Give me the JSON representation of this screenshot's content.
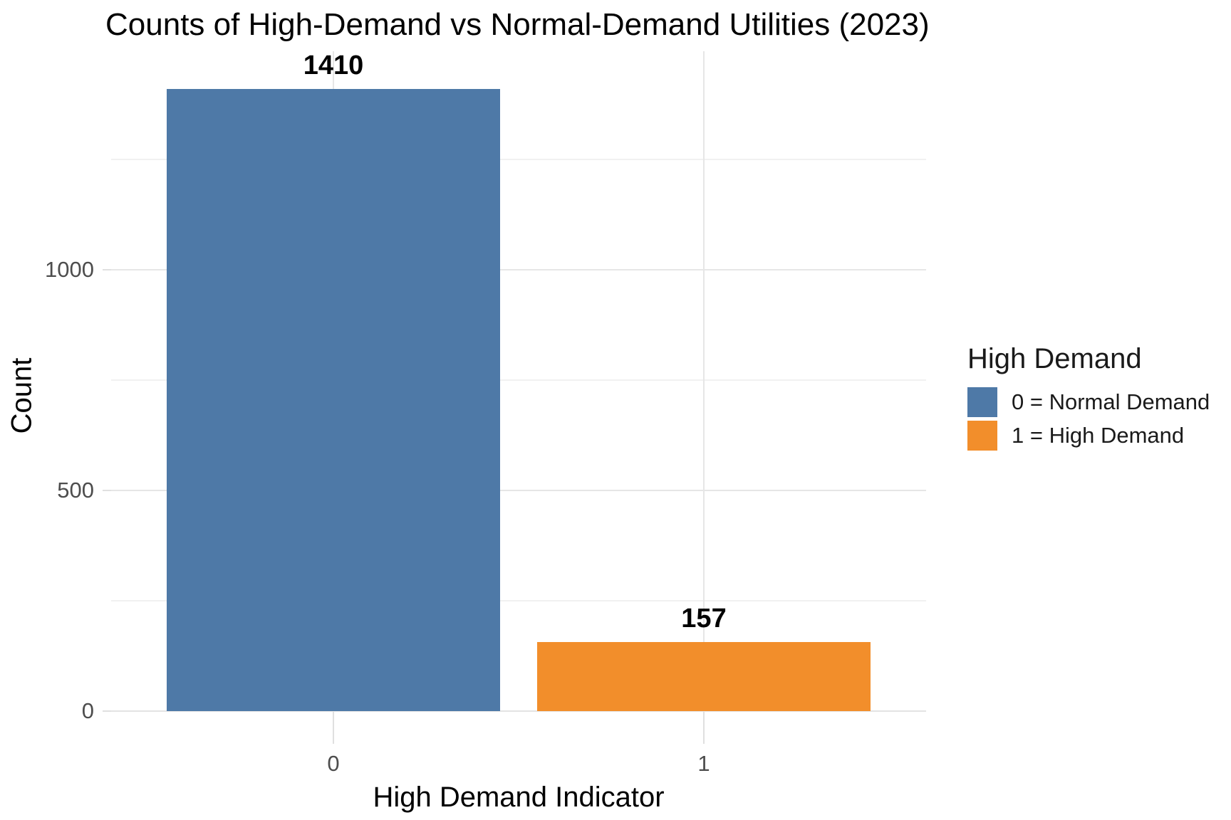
{
  "chart_data": {
    "type": "bar",
    "title": "Counts of High-Demand vs Normal-Demand Utilities (2023)",
    "xlabel": "High Demand Indicator",
    "ylabel": "Count",
    "categories": [
      "0",
      "1"
    ],
    "values": [
      1410,
      157
    ],
    "bar_value_labels": [
      "1410",
      "157"
    ],
    "bar_colors": [
      "#4E79A7",
      "#F28E2B"
    ],
    "bar_semantic_names": [
      "bar-normal-demand",
      "bar-high-demand"
    ],
    "ylim": [
      0,
      1495
    ],
    "y_major_ticks": [
      0,
      500,
      1000
    ],
    "y_major_tick_labels": [
      "0",
      "500",
      "1000"
    ],
    "y_minor_gridlines": [
      250,
      750,
      1250
    ],
    "grid": "horizontal major+minor and vertical major gridlines, light gray on white",
    "axis_text_color": "#4d4d4d",
    "legend": {
      "title": "High Demand",
      "position": "right",
      "entries": [
        {
          "label": "0 = Normal Demand",
          "color": "#4E79A7"
        },
        {
          "label": "1 = High Demand",
          "color": "#F28E2B"
        }
      ]
    }
  }
}
